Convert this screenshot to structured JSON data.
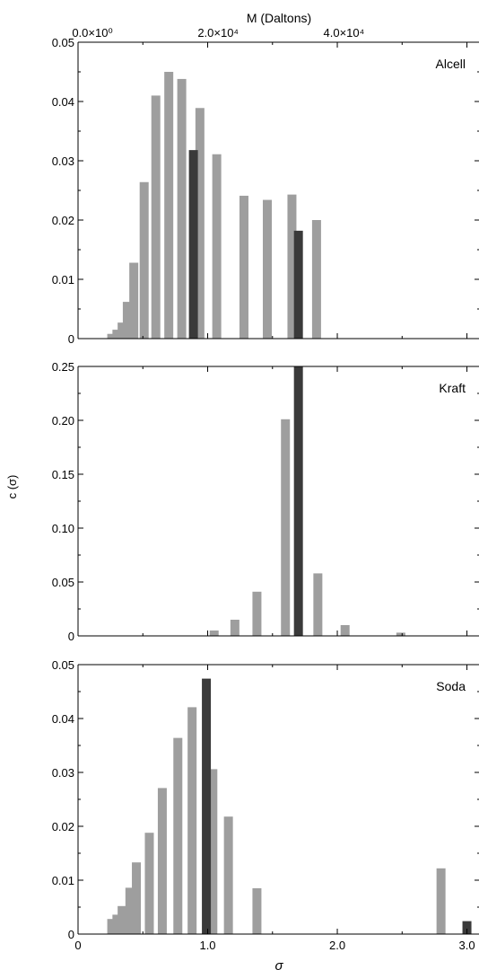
{
  "chart_data": [
    {
      "type": "bar",
      "panel": "Alcell",
      "label": "Alcell",
      "top_axis_label": "M (Daltons)",
      "top_ticks": [
        "0.0×10⁰",
        "2.0×10⁴",
        "4.0×10⁴"
      ],
      "top_tick_sigma": [
        0.0,
        0.97,
        1.94
      ],
      "xlim": [
        0,
        3.1
      ],
      "ylim": [
        0,
        0.05
      ],
      "yticks": [
        "0",
        "0.01",
        "0.02",
        "0.03",
        "0.04",
        "0.05"
      ],
      "bars_light": [
        {
          "sigma": 0.26,
          "value": 0.0008
        },
        {
          "sigma": 0.3,
          "value": 0.0015
        },
        {
          "sigma": 0.34,
          "value": 0.0027
        },
        {
          "sigma": 0.38,
          "value": 0.0062
        },
        {
          "sigma": 0.43,
          "value": 0.0128
        },
        {
          "sigma": 0.51,
          "value": 0.0264
        },
        {
          "sigma": 0.6,
          "value": 0.041
        },
        {
          "sigma": 0.7,
          "value": 0.045
        },
        {
          "sigma": 0.8,
          "value": 0.0438
        },
        {
          "sigma": 0.94,
          "value": 0.0389
        },
        {
          "sigma": 1.07,
          "value": 0.0311
        },
        {
          "sigma": 1.28,
          "value": 0.0241
        },
        {
          "sigma": 1.46,
          "value": 0.0234
        },
        {
          "sigma": 1.65,
          "value": 0.0243
        },
        {
          "sigma": 1.84,
          "value": 0.02
        }
      ],
      "bars_dark": [
        {
          "sigma": 0.89,
          "value": 0.0318
        },
        {
          "sigma": 1.7,
          "value": 0.0182
        }
      ]
    },
    {
      "type": "bar",
      "panel": "Kraft",
      "label": "Kraft",
      "ylabel": "c (σ)",
      "xlim": [
        0,
        3.1
      ],
      "ylim": [
        0,
        0.25
      ],
      "yticks": [
        "0",
        "0.05",
        "0.10",
        "0.15",
        "0.20",
        "0.25"
      ],
      "bars_light": [
        {
          "sigma": 1.05,
          "value": 0.005
        },
        {
          "sigma": 1.21,
          "value": 0.015
        },
        {
          "sigma": 1.38,
          "value": 0.041
        },
        {
          "sigma": 1.6,
          "value": 0.201
        },
        {
          "sigma": 1.85,
          "value": 0.058
        },
        {
          "sigma": 2.06,
          "value": 0.01
        },
        {
          "sigma": 2.49,
          "value": 0.003
        }
      ],
      "bars_dark": [
        {
          "sigma": 1.7,
          "value": 0.25
        }
      ]
    },
    {
      "type": "bar",
      "panel": "Soda",
      "label": "Soda",
      "xlabel": "σ",
      "xticks": [
        "0",
        "1.0",
        "2.0",
        "3.0"
      ],
      "xlim": [
        0,
        3.1
      ],
      "ylim": [
        0,
        0.05
      ],
      "yticks": [
        "0",
        "0.01",
        "0.02",
        "0.03",
        "0.04",
        "0.05"
      ],
      "bars_light": [
        {
          "sigma": 0.26,
          "value": 0.0028
        },
        {
          "sigma": 0.3,
          "value": 0.0036
        },
        {
          "sigma": 0.34,
          "value": 0.0052
        },
        {
          "sigma": 0.4,
          "value": 0.0086
        },
        {
          "sigma": 0.45,
          "value": 0.0133
        },
        {
          "sigma": 0.55,
          "value": 0.0188
        },
        {
          "sigma": 0.65,
          "value": 0.0271
        },
        {
          "sigma": 0.77,
          "value": 0.0364
        },
        {
          "sigma": 0.88,
          "value": 0.0421
        },
        {
          "sigma": 1.04,
          "value": 0.0306
        },
        {
          "sigma": 1.16,
          "value": 0.0218
        },
        {
          "sigma": 1.38,
          "value": 0.0085
        },
        {
          "sigma": 2.8,
          "value": 0.0122
        }
      ],
      "bars_dark": [
        {
          "sigma": 0.99,
          "value": 0.0474
        },
        {
          "sigma": 3.0,
          "value": 0.0024
        }
      ]
    }
  ],
  "colors": {
    "light_bar": "#9e9e9e",
    "dark_bar": "#3a3a3a",
    "axis": "#000000"
  }
}
